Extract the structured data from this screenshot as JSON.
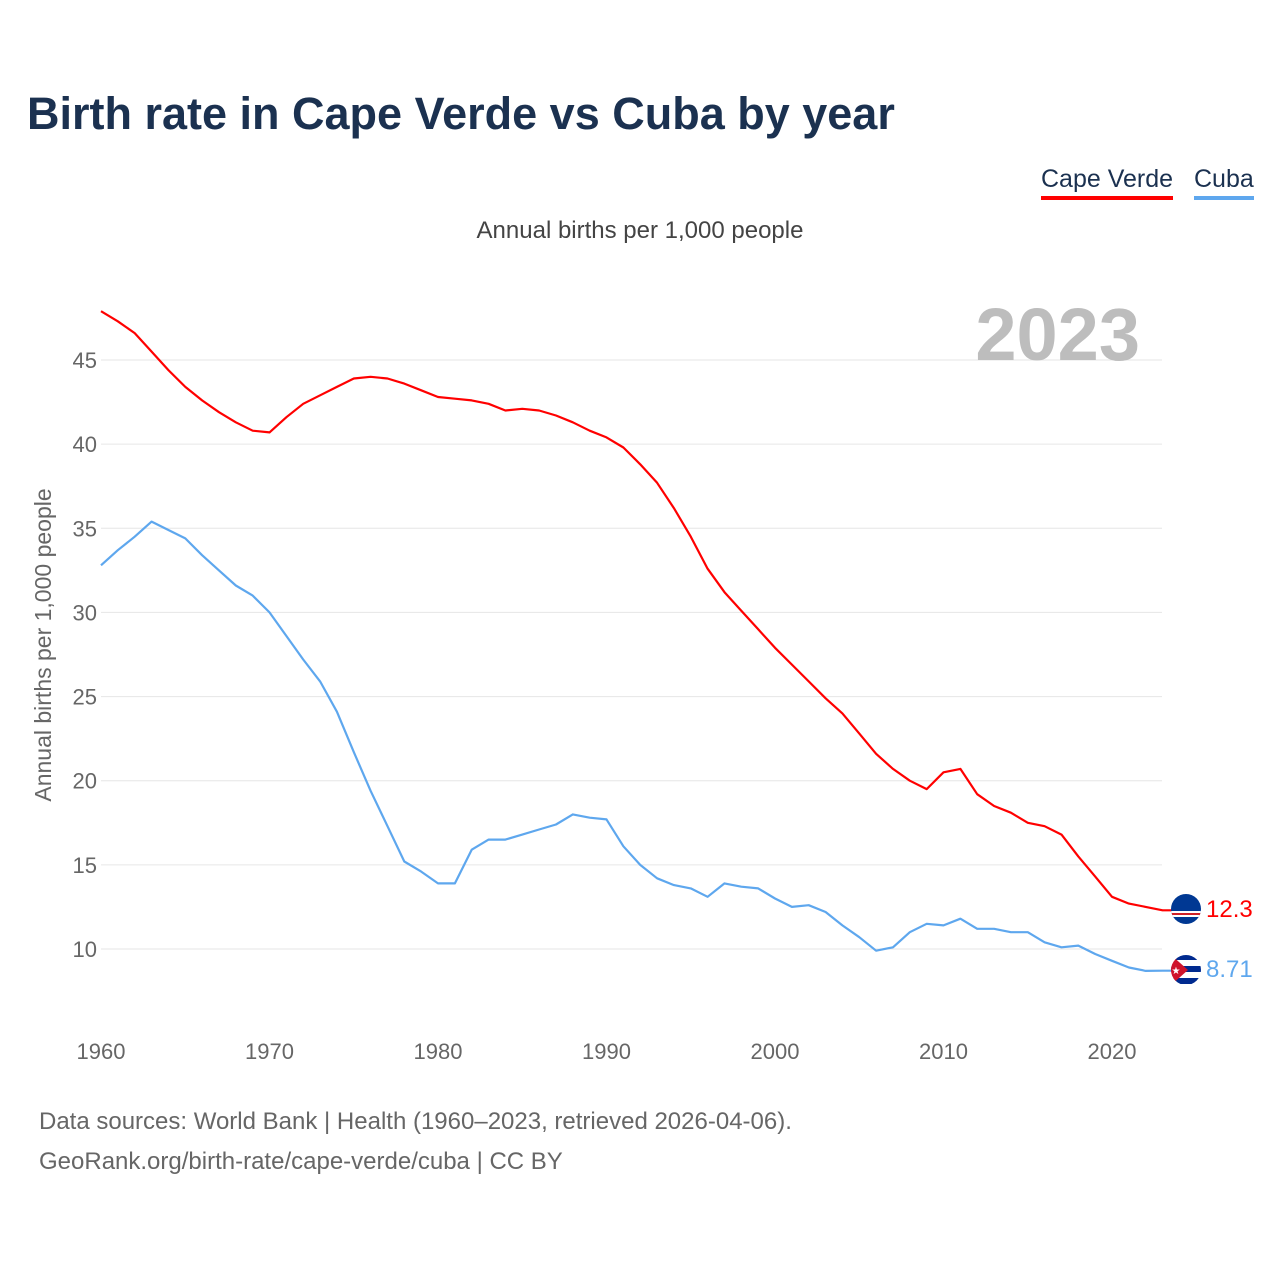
{
  "title": "Birth rate in Cape Verde vs Cuba by year",
  "legend": [
    "Cape Verde",
    "Cuba"
  ],
  "subtitle": "Annual births per 1,000 people",
  "year_label": "2023",
  "footer": {
    "line1": "Data sources: World Bank | Health (1960–2023, retrieved 2026-04-06).",
    "line2": "GeoRank.org/birth-rate/cape-verde/cuba | CC BY"
  },
  "chart_data": {
    "type": "line",
    "title": "Birth rate in Cape Verde vs Cuba by year",
    "xlabel": "",
    "ylabel": "Annual births per 1,000 people",
    "xlim": [
      1960,
      2023
    ],
    "ylim": [
      6,
      48
    ],
    "grid": true,
    "legend_position": "top-right",
    "x_ticks": [
      1960,
      1970,
      1980,
      1990,
      2000,
      2010,
      2020
    ],
    "y_ticks": [
      10,
      15,
      20,
      25,
      30,
      35,
      40,
      45
    ],
    "x": [
      1960,
      1961,
      1962,
      1963,
      1964,
      1965,
      1966,
      1967,
      1968,
      1969,
      1970,
      1971,
      1972,
      1973,
      1974,
      1975,
      1976,
      1977,
      1978,
      1979,
      1980,
      1981,
      1982,
      1983,
      1984,
      1985,
      1986,
      1987,
      1988,
      1989,
      1990,
      1991,
      1992,
      1993,
      1994,
      1995,
      1996,
      1997,
      1998,
      1999,
      2000,
      2001,
      2002,
      2003,
      2004,
      2005,
      2006,
      2007,
      2008,
      2009,
      2010,
      2011,
      2012,
      2013,
      2014,
      2015,
      2016,
      2017,
      2018,
      2019,
      2020,
      2021,
      2022,
      2023
    ],
    "series": [
      {
        "name": "Cape Verde",
        "color": "#ff0000",
        "end_label": "12.3",
        "values": [
          47.9,
          47.3,
          46.6,
          45.5,
          44.4,
          43.4,
          42.6,
          41.9,
          41.3,
          40.8,
          40.7,
          41.6,
          42.4,
          42.9,
          43.4,
          43.9,
          44.0,
          43.9,
          43.6,
          43.2,
          42.8,
          42.7,
          42.6,
          42.4,
          42.0,
          42.1,
          42.0,
          41.7,
          41.3,
          40.8,
          40.4,
          39.8,
          38.8,
          37.7,
          36.2,
          34.5,
          32.6,
          31.2,
          30.1,
          29.0,
          27.9,
          26.9,
          25.9,
          24.9,
          24.0,
          22.8,
          21.6,
          20.7,
          20.0,
          19.5,
          20.5,
          20.7,
          19.2,
          18.5,
          18.1,
          17.5,
          17.3,
          16.8,
          15.5,
          14.3,
          13.1,
          12.7,
          12.5,
          12.3
        ]
      },
      {
        "name": "Cuba",
        "color": "#5ea7ee",
        "end_label": "8.71",
        "values": [
          32.8,
          33.7,
          34.5,
          35.4,
          34.9,
          34.4,
          33.4,
          32.5,
          31.6,
          31.0,
          30.0,
          28.6,
          27.2,
          25.9,
          24.1,
          21.7,
          19.4,
          17.3,
          15.2,
          14.6,
          13.9,
          13.9,
          15.9,
          16.5,
          16.5,
          16.8,
          17.1,
          17.4,
          18.0,
          17.8,
          17.7,
          16.1,
          15.0,
          14.2,
          13.8,
          13.6,
          13.1,
          13.9,
          13.7,
          13.6,
          13.0,
          12.5,
          12.6,
          12.2,
          11.4,
          10.7,
          9.9,
          10.1,
          11.0,
          11.5,
          11.4,
          11.8,
          11.2,
          11.2,
          11.0,
          11.0,
          10.4,
          10.1,
          10.2,
          9.7,
          9.3,
          8.9,
          8.7,
          8.71
        ]
      }
    ]
  }
}
